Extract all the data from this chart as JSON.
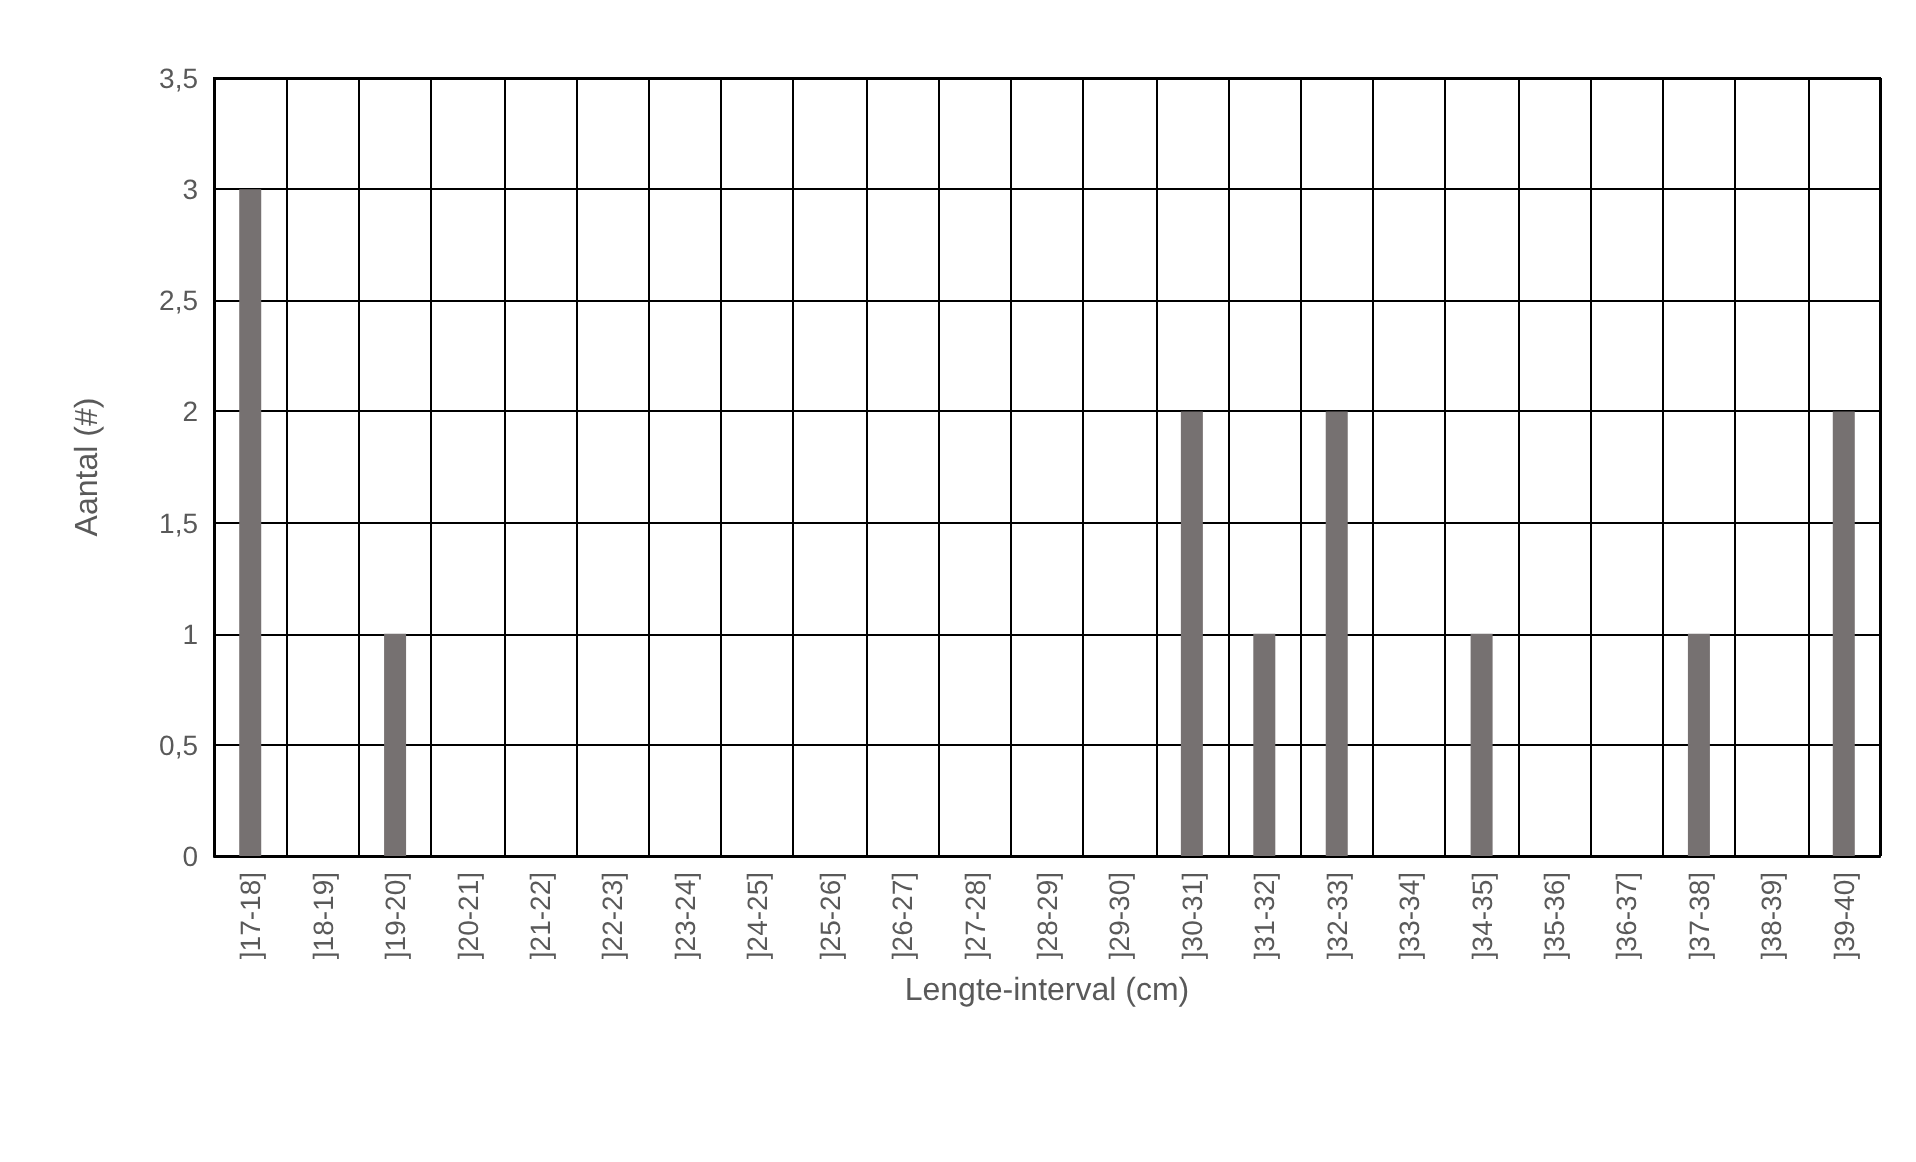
{
  "chart_data": {
    "type": "bar",
    "xlabel": "Lengte-interval (cm)",
    "ylabel": "Aantal (#)",
    "categories": [
      "]17-18]",
      "]18-19]",
      "]19-20]",
      "]20-21]",
      "]21-22]",
      "]22-23]",
      "]23-24]",
      "]24-25]",
      "]25-26]",
      "]26-27]",
      "]27-28]",
      "]28-29]",
      "]29-30]",
      "]30-31]",
      "]31-32]",
      "]32-33]",
      "]33-34]",
      "]34-35]",
      "]35-36]",
      "]36-37]",
      "]37-38]",
      "]38-39]",
      "]39-40]"
    ],
    "values": [
      3,
      0,
      1,
      0,
      0,
      0,
      0,
      0,
      0,
      0,
      0,
      0,
      0,
      2,
      1,
      2,
      0,
      1,
      0,
      0,
      1,
      0,
      2
    ],
    "color": "#767171",
    "ylim": [
      0,
      3.5
    ],
    "yticks": [
      0,
      {
        "value": 0.5,
        "label": "0,5"
      },
      1,
      {
        "value": 1.5,
        "label": "1,5"
      },
      2,
      {
        "value": 2.5,
        "label": "2,5"
      },
      3,
      {
        "value": 3.5,
        "label": "3,5"
      }
    ],
    "grid": true
  }
}
